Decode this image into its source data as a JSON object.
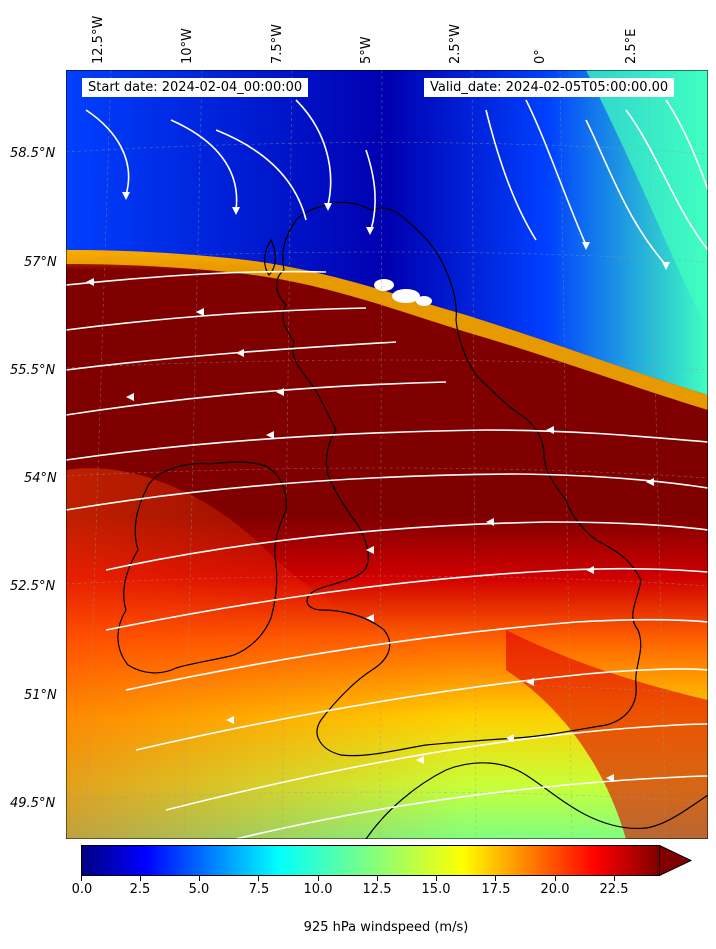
{
  "map": {
    "start_label": "Start date: 2024-02-04_00:00:00",
    "valid_label": "Valid_date: 2024-02-05T05:00:00.00",
    "lon_ticks": [
      "12.5°W",
      "10°W",
      "7.5°W",
      "5°W",
      "2.5°W",
      "0°",
      "2.5°E"
    ],
    "lat_ticks": [
      "58.5°N",
      "57°N",
      "55.5°N",
      "54°N",
      "52.5°N",
      "51°N",
      "49.5°N"
    ],
    "field": "925 hPa windspeed",
    "gridlines": true,
    "streamlines": true,
    "streamline_color": "#ffffff",
    "coastline_color": "#000000"
  },
  "colorbar": {
    "label": "925 hPa windspeed (m/s)",
    "ticks": [
      "0.0",
      "2.5",
      "5.0",
      "7.5",
      "10.0",
      "12.5",
      "15.0",
      "17.5",
      "20.0",
      "22.5"
    ],
    "min": 0,
    "max": 25,
    "extend": "max",
    "colormap": "jet"
  }
}
